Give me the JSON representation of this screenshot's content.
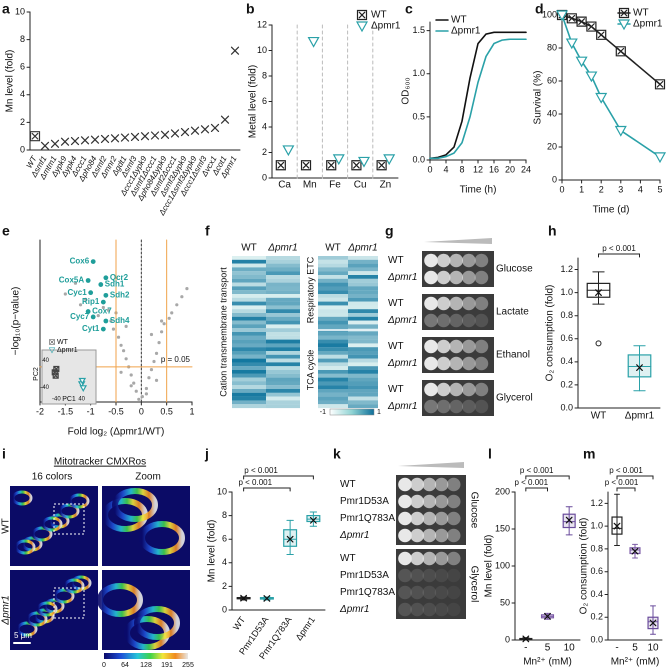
{
  "chart_data": [
    {
      "type": "dot",
      "panel": "a",
      "ylabel": "Mn level (fold)",
      "categories": [
        "WT",
        "Δsmf1",
        "Δmtm1",
        "Δypk9",
        "Δypk4",
        "Δccc1",
        "Δpho84",
        "Δsmf2",
        "Δmnr2",
        "Δgdt1",
        "Δsmf3",
        "Δccc1Δypk9",
        "Δsmf1Δccc1",
        "Δpho84Δypk9",
        "Δsmf2Δccc1",
        "Δsmf3Δypk9",
        "Δccc1Δsmf3Δypk9",
        "Δccc1Δsmf3",
        "Δvcx1",
        "Δcot1",
        "Δpmr1"
      ],
      "values": [
        1.0,
        0.3,
        0.45,
        0.6,
        0.65,
        0.7,
        0.75,
        0.8,
        0.85,
        0.9,
        0.95,
        1.0,
        1.05,
        1.1,
        1.2,
        1.3,
        1.4,
        1.5,
        1.6,
        2.2,
        7.2
      ],
      "color": "#333333",
      "ylim": [
        0,
        10
      ],
      "yticks": [
        0,
        2,
        4,
        6,
        8,
        10
      ]
    },
    {
      "type": "dot",
      "panel": "b",
      "ylabel": "Metal level (fold)",
      "categories": [
        "Ca",
        "Mn",
        "Fe",
        "Cu",
        "Zn"
      ],
      "series": [
        {
          "name": "WT",
          "color": "#222222",
          "marker": "square",
          "values": [
            1.0,
            1.0,
            1.0,
            1.0,
            1.0
          ]
        },
        {
          "name": "Δpmr1",
          "color": "#2aa1a8",
          "marker": "triangle",
          "values": [
            2.2,
            10.7,
            1.5,
            1.3,
            1.5
          ]
        }
      ],
      "legend": "top-right",
      "ylim": [
        0,
        12
      ],
      "yticks": [
        0,
        2,
        4,
        6,
        8,
        10,
        12
      ]
    },
    {
      "type": "line",
      "panel": "c",
      "ylabel": "OD₆₀₀",
      "xlabel": "Time (h)",
      "x": [
        0,
        2,
        4,
        6,
        8,
        10,
        12,
        14,
        16,
        18,
        20,
        22,
        24
      ],
      "series": [
        {
          "name": "WT",
          "color": "#111111",
          "values": [
            0.02,
            0.03,
            0.06,
            0.15,
            0.45,
            0.95,
            1.35,
            1.46,
            1.48,
            1.48,
            1.48,
            1.48,
            1.48
          ]
        },
        {
          "name": "Δpmr1",
          "color": "#2aa1a8",
          "values": [
            0.02,
            0.02,
            0.04,
            0.08,
            0.2,
            0.5,
            0.9,
            1.2,
            1.35,
            1.39,
            1.4,
            1.4,
            1.4
          ]
        }
      ],
      "legend": "top-left",
      "xlim": [
        0,
        24
      ],
      "xticks": [
        0,
        4,
        8,
        12,
        16,
        20,
        24
      ],
      "ylim": [
        0,
        1.6
      ],
      "yticks": [
        {
          "value": 0,
          "label": "0.0"
        },
        0.5,
        {
          "value": 1,
          "label": "1.0"
        },
        1.5
      ]
    },
    {
      "type": "line",
      "panel": "d",
      "ylabel": "Survival (%)",
      "xlabel": "Time (d)",
      "x": [
        0,
        0.5,
        1,
        1.5,
        2,
        3,
        5
      ],
      "series": [
        {
          "name": "WT",
          "color": "#222222",
          "marker": "square",
          "values": [
            100,
            98,
            96,
            93,
            88,
            78,
            58
          ]
        },
        {
          "name": "Δpmr1",
          "color": "#2aa1a8",
          "marker": "triangle",
          "values": [
            100,
            83,
            72,
            63,
            50,
            30,
            14
          ]
        }
      ],
      "legend": "top-right",
      "xlim": [
        0,
        5
      ],
      "xticks": [
        0,
        1,
        2,
        3,
        4,
        5
      ],
      "ylim": [
        0,
        100
      ],
      "yticks": [
        0,
        20,
        40,
        60,
        80,
        100
      ]
    },
    {
      "type": "volcano",
      "panel": "e",
      "ylabel": "−log₁₀(p−value)",
      "xlabel": "Fold log₂ (Δpmr1/WT)",
      "x": [
        -0.05,
        0.02,
        -0.1,
        0.1,
        -0.15,
        0.15,
        -0.2,
        0.2,
        -0.25,
        0.25,
        -0.3,
        0.3,
        -0.35,
        0.35,
        -0.4,
        0.4,
        -0.45,
        0.45,
        -0.55,
        0.55,
        -0.6,
        0.6,
        -0.65,
        0.7,
        -0.75,
        0.8,
        -0.85,
        0.9,
        -1.1,
        -1.2,
        -1.3,
        -1.5,
        -0.3,
        0.2,
        -0.5,
        0.4,
        -0.2,
        0.1,
        -0.4,
        0.3
      ],
      "values": [
        0.1,
        0.2,
        0.4,
        0.5,
        0.7,
        0.9,
        1.0,
        1.2,
        1.3,
        1.5,
        1.6,
        1.8,
        1.9,
        2.2,
        2.1,
        2.6,
        2.4,
        2.9,
        2.7,
        3.1,
        3.0,
        3.3,
        3.4,
        3.6,
        3.5,
        3.9,
        3.2,
        4.2,
        3.8,
        3.6,
        4.4,
        4.0,
        2.8,
        2.5,
        3.3,
        3.0,
        0.6,
        0.3,
        1.1,
        0.8
      ],
      "color": "#a8a8a8",
      "highlight": {
        "color": "#1f9e9a",
        "labels": [
          "Cox6",
          "Qcr2",
          "Cox5A",
          "Sdh1",
          "Cyc1",
          "Sdh2",
          "Rip1",
          "Cox7",
          "Cyc7",
          "Sdh4",
          "Cyt1"
        ],
        "x": [
          -0.95,
          -0.7,
          -1.05,
          -0.8,
          -1.0,
          -0.7,
          -0.75,
          -1.05,
          -0.95,
          -0.7,
          -0.75
        ],
        "values": [
          5.2,
          4.6,
          4.5,
          4.35,
          4.05,
          3.95,
          3.7,
          3.35,
          3.15,
          3.0,
          2.7
        ]
      },
      "thresholds_x": [
        -0.5,
        0.5
      ],
      "threshold_y": 1.3,
      "threshold_label": "p = 0.05",
      "threshold_color": "#f0a24a",
      "xlim": [
        -2,
        1
      ],
      "xticks": [
        -2,
        -1.5,
        -1,
        -0.5,
        0,
        0.5,
        1
      ],
      "ylim": [
        0,
        6
      ],
      "inset": {
        "xlabel": "PC1",
        "ylabel": "PC2",
        "xlim": [
          -60,
          60
        ],
        "ylim": [
          -60,
          60
        ],
        "xticks": [
          -40,
          40
        ],
        "yticks": [
          -40,
          40
        ],
        "series": [
          {
            "name": "WT",
            "color": "#444444",
            "marker": "square",
            "x": [
              -45,
              -40,
              -42
            ],
            "values": [
              5,
              15,
              -5
            ]
          },
          {
            "name": "Δpmr1",
            "color": "#2aa1a8",
            "marker": "triangle",
            "x": [
              40,
              45,
              42
            ],
            "values": [
              -30,
              -42,
              -20
            ]
          }
        ]
      }
    },
    {
      "type": "box",
      "panel": "h",
      "ylabel": "O₂ consumption (fold)",
      "categories": [
        "WT",
        "Δpmr1"
      ],
      "colors": [
        "#222222",
        "#2aa1a8"
      ],
      "boxes": [
        {
          "min": 0.9,
          "q1": 0.96,
          "median": 1.02,
          "q3": 1.08,
          "max": 1.18,
          "mean": 1.0,
          "outliers": [
            0.56
          ]
        },
        {
          "min": 0.15,
          "q1": 0.27,
          "median": 0.36,
          "q3": 0.46,
          "max": 0.54,
          "mean": 0.35
        }
      ],
      "comparisons": [
        {
          "label": "p < 0.001",
          "pair": [
            "WT",
            "Δpmr1"
          ]
        }
      ],
      "ylim": [
        0,
        1.3
      ],
      "yticks": [
        {
          "value": 0,
          "label": "0.0"
        },
        0.2,
        0.4,
        0.6,
        0.8,
        {
          "value": 1,
          "label": "1.0"
        },
        1.2
      ]
    },
    {
      "type": "box",
      "panel": "j",
      "ylabel": "Mn level (fold)",
      "categories": [
        "WT",
        "Pmr1D53A",
        "Pmr1Q783A",
        "Δpmr1"
      ],
      "colors": [
        "#222222",
        "#2aa1a8",
        "#2aa1a8",
        "#2aa1a8"
      ],
      "boxes": [
        {
          "min": 0.85,
          "q1": 0.95,
          "median": 1.0,
          "q3": 1.05,
          "max": 1.1,
          "mean": 1.0
        },
        {
          "min": 0.85,
          "q1": 0.93,
          "median": 1.0,
          "q3": 1.05,
          "max": 1.1,
          "mean": 0.98
        },
        {
          "min": 4.7,
          "q1": 5.4,
          "median": 6.0,
          "q3": 6.8,
          "max": 7.6,
          "mean": 6.0
        },
        {
          "min": 7.1,
          "q1": 7.5,
          "median": 7.7,
          "q3": 8.0,
          "max": 8.3,
          "mean": 7.6
        }
      ],
      "comparisons": [
        {
          "label": "p < 0.001",
          "pair": [
            "WT",
            "Pmr1Q783A"
          ]
        },
        {
          "label": "p < 0.001",
          "pair": [
            "WT",
            "Δpmr1"
          ]
        }
      ],
      "ylim": [
        0,
        10
      ],
      "yticks": [
        0,
        2,
        4,
        6,
        8,
        10
      ]
    },
    {
      "type": "box",
      "panel": "l",
      "ylabel": "Mn level (fold)",
      "xlabel": "Mn²⁺ (mM)",
      "categories": [
        "-",
        "5",
        "10"
      ],
      "colors": [
        "#222222",
        "#7b5aa6",
        "#6a4c9c"
      ],
      "boxes": [
        {
          "min": 0.5,
          "q1": 1,
          "median": 1.5,
          "q3": 2,
          "max": 3,
          "mean": 1.5
        },
        {
          "min": 28,
          "q1": 30,
          "median": 32,
          "q3": 34,
          "max": 36,
          "mean": 32
        },
        {
          "min": 142,
          "q1": 152,
          "median": 160,
          "q3": 170,
          "max": 180,
          "mean": 162
        }
      ],
      "comparisons": [
        {
          "label": "p < 0.001",
          "pair": [
            "-",
            "5"
          ]
        },
        {
          "label": "p < 0.001",
          "pair": [
            "-",
            "10"
          ]
        }
      ],
      "ylim": [
        0,
        200
      ],
      "yticks": [
        0,
        50,
        100,
        150,
        200
      ]
    },
    {
      "type": "box",
      "panel": "m",
      "ylabel": "O₂ consumption (fold)",
      "xlabel": "Mn²⁺ (mM)",
      "categories": [
        "-",
        "5",
        "10"
      ],
      "colors": [
        "#222222",
        "#7b5aa6",
        "#6a4c9c"
      ],
      "boxes": [
        {
          "min": 0.83,
          "q1": 0.93,
          "median": 0.98,
          "q3": 1.08,
          "max": 1.28,
          "mean": 1.0
        },
        {
          "min": 0.72,
          "q1": 0.76,
          "median": 0.79,
          "q3": 0.81,
          "max": 0.84,
          "mean": 0.78
        },
        {
          "min": 0.05,
          "q1": 0.1,
          "median": 0.16,
          "q3": 0.2,
          "max": 0.3,
          "mean": 0.15
        }
      ],
      "comparisons": [
        {
          "label": "p < 0.001",
          "pair": [
            "-",
            "5"
          ]
        },
        {
          "label": "p < 0.001",
          "pair": [
            "-",
            "10"
          ]
        }
      ],
      "ylim": [
        0,
        1.3
      ],
      "yticks": [
        {
          "value": 0,
          "label": "0.0"
        },
        0.2,
        0.4,
        0.6,
        0.8,
        {
          "value": 1,
          "label": "1.0"
        },
        1.2
      ]
    }
  ],
  "figure": {
    "f": {
      "panel": "f",
      "columns": [
        "WT",
        "Δpmr1",
        "WT",
        "Δpmr1"
      ],
      "row_groups": [
        "Cation transmembrane transport",
        "Respiratory ETC",
        "TCA cycle"
      ],
      "colorbar": [
        "-1",
        "1"
      ]
    },
    "g": {
      "panel": "g",
      "rows": [
        "WT",
        "Δpmr1",
        "WT",
        "Δpmr1",
        "WT",
        "Δpmr1",
        "WT",
        "Δpmr1"
      ],
      "media": [
        "Glucose",
        "Lactate",
        "Ethanol",
        "Glycerol"
      ]
    },
    "i": {
      "panel": "i",
      "title": "Mitotracker CMXRos",
      "columns": [
        "16 colors",
        "Zoom"
      ],
      "rows": [
        "WT",
        "Δpmr1"
      ],
      "scalebar": "5 μm",
      "colorbar": [
        "0",
        "64",
        "128",
        "191",
        "255"
      ]
    },
    "k": {
      "panel": "k",
      "rows": [
        "WT",
        "Pmr1D53A",
        "Pmr1Q783A",
        "Δpmr1",
        "WT",
        "Pmr1D53A",
        "Pmr1Q783A",
        "Δpmr1"
      ],
      "media": [
        "Glucose",
        "Glycerol"
      ]
    }
  }
}
